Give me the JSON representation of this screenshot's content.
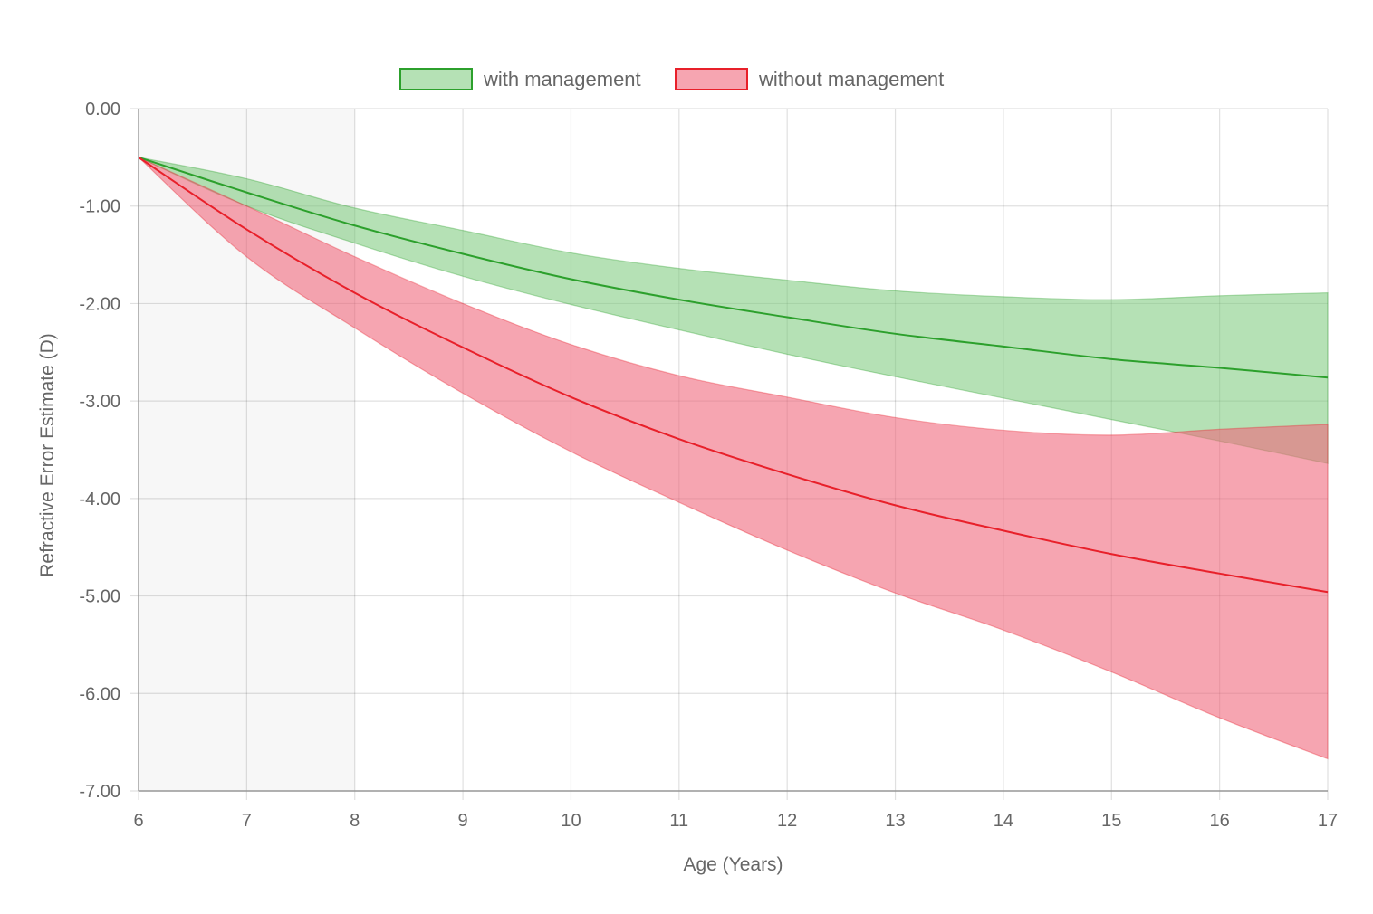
{
  "chart_data": {
    "type": "line",
    "title": "",
    "xlabel": "Age (Years)",
    "ylabel": "Refractive Error Estimate (D)",
    "xlim": [
      6,
      17
    ],
    "ylim": [
      -7,
      0
    ],
    "grid": true,
    "legend_position": "top-center",
    "x_ticks": [
      "6",
      "7",
      "8",
      "9",
      "10",
      "11",
      "12",
      "13",
      "14",
      "15",
      "16",
      "17"
    ],
    "y_ticks": [
      "0.00",
      "-1.00",
      "-2.00",
      "-3.00",
      "-4.00",
      "-5.00",
      "-6.00",
      "-7.00"
    ],
    "shaded_region": {
      "x_start": 6,
      "x_end": 8,
      "color": "#f7f7f7"
    },
    "x": [
      6,
      7,
      8,
      9,
      10,
      11,
      12,
      13,
      14,
      15,
      16,
      17
    ],
    "series": [
      {
        "name": "with management",
        "line_color": "#2ca02c",
        "fill_color": "rgba(120,200,120,0.55)",
        "mean": [
          -0.5,
          -0.86,
          -1.2,
          -1.49,
          -1.75,
          -1.96,
          -2.14,
          -2.31,
          -2.44,
          -2.57,
          -2.66,
          -2.76
        ],
        "upper": [
          -0.5,
          -0.72,
          -1.02,
          -1.25,
          -1.48,
          -1.64,
          -1.76,
          -1.87,
          -1.93,
          -1.96,
          -1.92,
          -1.89
        ],
        "lower": [
          -0.5,
          -1.0,
          -1.38,
          -1.72,
          -2.01,
          -2.27,
          -2.52,
          -2.75,
          -2.97,
          -3.19,
          -3.41,
          -3.64
        ]
      },
      {
        "name": "without management",
        "line_color": "#e8202a",
        "fill_color": "rgba(240,100,120,0.58)",
        "mean": [
          -0.5,
          -1.24,
          -1.89,
          -2.45,
          -2.96,
          -3.39,
          -3.75,
          -4.07,
          -4.33,
          -4.57,
          -4.77,
          -4.96
        ],
        "upper": [
          -0.5,
          -1.0,
          -1.52,
          -2.0,
          -2.42,
          -2.74,
          -2.96,
          -3.17,
          -3.3,
          -3.35,
          -3.29,
          -3.24
        ],
        "lower": [
          -0.5,
          -1.52,
          -2.25,
          -2.92,
          -3.52,
          -4.04,
          -4.53,
          -4.97,
          -5.35,
          -5.78,
          -6.25,
          -6.67
        ]
      }
    ]
  }
}
